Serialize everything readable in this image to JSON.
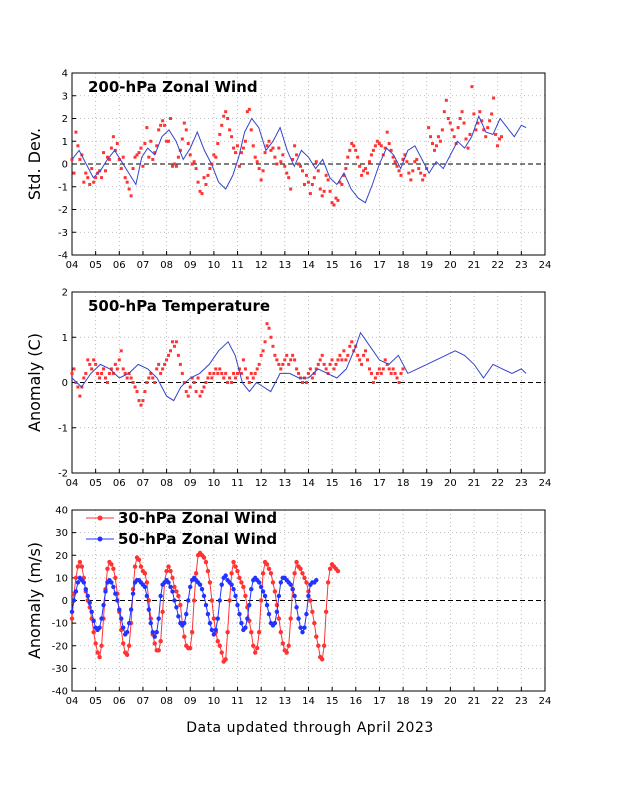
{
  "footer": "Data updated through April 2023",
  "colors": {
    "red": "#ff3333",
    "blue": "#2233ff",
    "line_blue": "#3344cc",
    "grid": "#aaaaaa"
  },
  "chart_data": [
    {
      "type": "scatter",
      "title": "200-hPa Zonal Wind",
      "ylabel": "Std. Dev.",
      "xlabel": "",
      "xlim": [
        2004,
        2024
      ],
      "ylim": [
        -4,
        4
      ],
      "x_tick_labels": [
        "04",
        "05",
        "06",
        "07",
        "08",
        "09",
        "10",
        "11",
        "12",
        "13",
        "14",
        "15",
        "16",
        "17",
        "18",
        "19",
        "20",
        "21",
        "22",
        "23",
        "24"
      ],
      "y_tick_labels": [
        "4",
        "3",
        "2",
        "1",
        "0",
        "-1",
        "-2",
        "-3",
        "-4"
      ],
      "zero_line": true,
      "grid": true,
      "series": [
        {
          "style": "points+smoothed-line",
          "x_start": 2004.0,
          "dx": 0.0833,
          "values": [
            0.2,
            -0.4,
            1.4,
            0.8,
            0.2,
            0.4,
            -0.8,
            -0.4,
            -0.6,
            -0.9,
            -0.2,
            -0.8,
            -0.6,
            -0.4,
            -0.3,
            -0.6,
            0.5,
            -0.3,
            0.3,
            0.2,
            0.7,
            1.2,
            0.6,
            0.9,
            0.2,
            -0.2,
            0.3,
            -0.6,
            -0.8,
            -1.1,
            -1.4,
            -0.2,
            0.3,
            0.4,
            0.5,
            0.7,
            -0.1,
            0.9,
            1.6,
            0.3,
            1.0,
            0.2,
            0.5,
            0.8,
            1.5,
            1.7,
            1.9,
            1.7,
            1.0,
            1.0,
            2.0,
            -0.1,
            0.0,
            -0.1,
            0.3,
            0.6,
            1.1,
            1.8,
            1.5,
            0.9,
            0.4,
            0.0,
            0.1,
            -0.2,
            -0.8,
            -1.2,
            -1.3,
            -0.6,
            -0.9,
            -0.5,
            -0.2,
            0.0,
            0.4,
            0.3,
            0.9,
            1.3,
            1.7,
            2.1,
            2.3,
            2.0,
            1.5,
            1.2,
            0.7,
            0.5,
            0.8,
            -0.1,
            0.5,
            0.7,
            1.0,
            2.3,
            2.4,
            1.5,
            0.8,
            0.3,
            0.1,
            -0.2,
            -0.7,
            -0.3,
            0.5,
            0.8,
            1.0,
            0.6,
            0.7,
            0.3,
            0.0,
            0.7,
            0.1,
            0.4,
            -0.1,
            -0.4,
            -0.6,
            -1.1,
            0.2,
            0.8,
            0.4,
            0.0,
            -0.1,
            -0.3,
            -0.9,
            -0.5,
            -0.8,
            -1.3,
            -0.9,
            -0.6,
            0.1,
            -0.3,
            -1.1,
            -1.4,
            -1.2,
            -0.5,
            -0.7,
            -1.2,
            -1.7,
            -1.8,
            -1.5,
            -1.6,
            -0.8,
            -0.9,
            -0.5,
            -0.2,
            0.3,
            0.6,
            0.9,
            0.8,
            0.6,
            0.3,
            -0.1,
            -0.5,
            -0.3,
            -0.2,
            -0.4,
            0.1,
            0.4,
            0.6,
            0.8,
            1.0,
            0.9,
            0.8,
            0.4,
            0.7,
            1.4,
            0.9,
            0.6,
            0.3,
            0.1,
            -0.1,
            -0.3,
            -0.5,
            0.2,
            0.4,
            0.1,
            -0.4,
            -0.7,
            -0.3,
            0.1,
            0.2,
            -0.2,
            -0.4,
            -0.7,
            -0.5,
            -0.2,
            1.6,
            1.2,
            0.9,
            0.6,
            0.8,
            1.2,
            1.0,
            1.5,
            2.3,
            2.8,
            2.0,
            1.8,
            1.5,
            1.2,
            0.9,
            1.6,
            2.0,
            2.3,
            1.8,
            1.1,
            0.7,
            1.3,
            3.4,
            2.2,
            1.5,
            1.8,
            2.3,
            1.9,
            1.5,
            1.2,
            1.6,
            1.9,
            2.2,
            2.9,
            1.3,
            0.8,
            1.1,
            1.2
          ]
        },
        {
          "style": "line",
          "x": [
            2004.0,
            2004.3,
            2004.6,
            2004.9,
            2005.2,
            2005.5,
            2005.8,
            2006.1,
            2006.4,
            2006.7,
            2006.95,
            2007.2,
            2007.5,
            2007.8,
            2008.1,
            2008.4,
            2008.7,
            2009.0,
            2009.3,
            2009.6,
            2009.9,
            2010.2,
            2010.5,
            2010.8,
            2011.05,
            2011.3,
            2011.6,
            2011.9,
            2012.2,
            2012.5,
            2012.8,
            2013.1,
            2013.4,
            2013.7,
            2014.0,
            2014.3,
            2014.6,
            2014.9,
            2015.2,
            2015.5,
            2015.8,
            2016.1,
            2016.4,
            2016.7,
            2017.0,
            2017.3,
            2017.6,
            2017.9,
            2018.2,
            2018.5,
            2018.8,
            2019.1,
            2019.4,
            2019.7,
            2020.0,
            2020.3,
            2020.6,
            2020.9,
            2021.2,
            2021.5,
            2021.8,
            2022.1,
            2022.4,
            2022.7,
            2023.0,
            2023.2
          ],
          "y": [
            0.2,
            0.6,
            0.0,
            -0.6,
            -0.3,
            0.2,
            0.6,
            0.1,
            -0.4,
            -0.9,
            0.3,
            0.7,
            0.4,
            1.2,
            1.5,
            1.0,
            0.2,
            0.7,
            1.4,
            0.6,
            0.0,
            -0.8,
            -1.1,
            -0.5,
            0.3,
            1.4,
            2.0,
            1.6,
            0.6,
            1.0,
            1.6,
            0.6,
            -0.1,
            0.6,
            0.3,
            -0.2,
            0.2,
            -0.6,
            -0.9,
            -0.4,
            -1.1,
            -1.5,
            -1.7,
            -0.9,
            0.0,
            0.7,
            0.4,
            -0.2,
            0.6,
            0.8,
            0.2,
            -0.4,
            0.1,
            -0.2,
            0.4,
            1.0,
            0.7,
            1.2,
            2.1,
            1.4,
            1.3,
            2.0,
            1.6,
            1.2,
            1.7,
            1.6
          ]
        }
      ]
    },
    {
      "type": "scatter",
      "title": "500-hPa Temperature",
      "ylabel": "Anomaly (C)",
      "xlabel": "",
      "xlim": [
        2004,
        2024
      ],
      "ylim": [
        -2,
        2
      ],
      "x_tick_labels": [
        "04",
        "05",
        "06",
        "07",
        "08",
        "09",
        "10",
        "11",
        "12",
        "13",
        "14",
        "15",
        "16",
        "17",
        "18",
        "19",
        "20",
        "21",
        "22",
        "23",
        "24"
      ],
      "y_tick_labels": [
        "2",
        "1",
        "0",
        "-1",
        "-2"
      ],
      "zero_line": true,
      "grid": true,
      "series": [
        {
          "style": "points+smoothed-line",
          "x_start": 2004.0,
          "dx": 0.0833,
          "values": [
            0.2,
            0.3,
            0.0,
            -0.1,
            -0.3,
            -0.1,
            0.1,
            0.2,
            0.5,
            0.4,
            0.3,
            0.5,
            0.4,
            0.2,
            0.1,
            0.2,
            0.3,
            0.1,
            0.0,
            0.2,
            0.3,
            0.2,
            0.4,
            0.3,
            0.5,
            0.7,
            0.3,
            0.2,
            0.1,
            0.2,
            0.1,
            0.0,
            -0.1,
            -0.2,
            -0.4,
            -0.5,
            -0.4,
            -0.2,
            0.0,
            0.1,
            0.2,
            0.1,
            0.0,
            0.3,
            0.4,
            0.2,
            0.3,
            0.4,
            0.5,
            0.6,
            0.7,
            0.9,
            0.8,
            0.9,
            0.6,
            0.4,
            0.2,
            0.0,
            -0.2,
            -0.3,
            -0.1,
            0.1,
            0.0,
            -0.2,
            0.1,
            -0.3,
            -0.2,
            -0.1,
            0.0,
            0.1,
            0.2,
            0.1,
            0.2,
            0.3,
            0.2,
            0.3,
            0.2,
            0.1,
            0.2,
            0.0,
            0.1,
            0.0,
            0.2,
            0.1,
            0.2,
            0.3,
            0.2,
            0.5,
            0.3,
            0.1,
            0.0,
            0.2,
            0.1,
            0.2,
            0.3,
            0.4,
            0.6,
            0.7,
            0.9,
            1.3,
            1.2,
            1.0,
            0.8,
            0.6,
            0.5,
            0.4,
            0.3,
            0.4,
            0.5,
            0.6,
            0.4,
            0.5,
            0.6,
            0.5,
            0.3,
            0.2,
            0.1,
            0.0,
            0.1,
            0.0,
            0.2,
            0.3,
            0.1,
            0.2,
            0.3,
            0.4,
            0.5,
            0.6,
            0.4,
            0.3,
            0.2,
            0.4,
            0.5,
            0.3,
            0.4,
            0.5,
            0.6,
            0.5,
            0.7,
            0.5,
            0.6,
            0.8,
            0.9,
            0.7,
            0.8,
            0.6,
            0.5,
            0.4,
            0.6,
            0.7,
            0.5,
            0.3,
            0.2,
            0.0,
            0.1,
            0.2,
            0.3,
            0.2,
            0.3,
            0.5,
            0.4,
            0.3,
            0.2,
            0.3,
            0.2,
            0.1,
            0.0,
            0.2,
            0.3
          ]
        },
        {
          "style": "line",
          "x": [
            2004.0,
            2004.4,
            2004.8,
            2005.2,
            2005.6,
            2006.0,
            2006.4,
            2006.8,
            2007.2,
            2007.6,
            2008.0,
            2008.3,
            2008.6,
            2009.0,
            2009.4,
            2009.8,
            2010.2,
            2010.6,
            2010.9,
            2011.2,
            2011.5,
            2011.8,
            2012.1,
            2012.4,
            2012.8,
            2013.2,
            2013.6,
            2014.0,
            2014.4,
            2014.8,
            2015.2,
            2015.6,
            2016.0,
            2016.2,
            2016.6,
            2017.0,
            2017.4,
            2017.8,
            2018.2,
            2018.6,
            2019.0,
            2019.4,
            2019.8,
            2020.2,
            2020.6,
            2021.0,
            2021.4,
            2021.8,
            2022.2,
            2022.6,
            2023.0,
            2023.2
          ],
          "y": [
            0.1,
            -0.1,
            0.2,
            0.4,
            0.3,
            0.1,
            0.2,
            0.4,
            0.3,
            0.1,
            -0.3,
            -0.4,
            -0.1,
            0.1,
            0.2,
            0.4,
            0.7,
            0.9,
            0.6,
            0.0,
            -0.2,
            0.0,
            -0.1,
            -0.2,
            0.2,
            0.2,
            0.1,
            0.1,
            0.3,
            0.2,
            0.1,
            0.3,
            0.8,
            1.1,
            0.8,
            0.5,
            0.4,
            0.6,
            0.2,
            0.3,
            0.4,
            0.5,
            0.6,
            0.7,
            0.6,
            0.4,
            0.1,
            0.4,
            0.3,
            0.2,
            0.3,
            0.2
          ]
        }
      ]
    },
    {
      "type": "line",
      "title": "",
      "ylabel": "Anomaly (m/s)",
      "xlabel": "",
      "xlim": [
        2004,
        2024
      ],
      "ylim": [
        -40,
        40
      ],
      "x_tick_labels": [
        "04",
        "05",
        "06",
        "07",
        "08",
        "09",
        "10",
        "11",
        "12",
        "13",
        "14",
        "15",
        "16",
        "17",
        "18",
        "19",
        "20",
        "21",
        "22",
        "23",
        "24"
      ],
      "y_tick_labels": [
        "40",
        "30",
        "20",
        "10",
        "0",
        "-10",
        "-20",
        "-30",
        "-40"
      ],
      "zero_line": true,
      "grid": true,
      "legend_position": "top-left",
      "series": [
        {
          "name": "30-hPa Zonal Wind",
          "color": "#ff3333",
          "x_start": 2004.0,
          "dx": 0.0833,
          "values": [
            -8,
            3,
            10,
            15,
            17,
            15,
            10,
            4,
            0,
            -3,
            -8,
            -14,
            -19,
            -23,
            -25,
            -20,
            -8,
            5,
            14,
            17,
            16,
            14,
            10,
            3,
            -5,
            -13,
            -19,
            -23,
            -24,
            -20,
            -10,
            5,
            15,
            19,
            18,
            15,
            13,
            12,
            8,
            0,
            -8,
            -15,
            -19,
            -22,
            -22,
            -18,
            -5,
            8,
            13,
            15,
            13,
            10,
            6,
            4,
            2,
            -2,
            -10,
            -16,
            -20,
            -21,
            -21,
            -14,
            0,
            12,
            20,
            21,
            20,
            19,
            17,
            13,
            8,
            0,
            -8,
            -14,
            -18,
            -20,
            -23,
            -27,
            -26,
            -14,
            0,
            12,
            17,
            15,
            13,
            10,
            8,
            6,
            2,
            -3,
            -9,
            -14,
            -20,
            -23,
            -21,
            -14,
            0,
            12,
            17,
            16,
            14,
            12,
            8,
            4,
            -2,
            -8,
            -14,
            -19,
            -22,
            -23,
            -20,
            -8,
            5,
            12,
            17,
            15,
            14,
            12,
            10,
            8,
            4,
            0,
            -5,
            -10,
            -16,
            -20,
            -25,
            -26,
            -20,
            -5,
            8,
            14,
            16,
            15,
            14,
            13
          ]
        },
        {
          "name": "50-hPa Zonal Wind",
          "color": "#2233ff",
          "x_start": 2004.0,
          "dx": 0.0833,
          "values": [
            -5,
            0,
            4,
            8,
            10,
            9,
            8,
            5,
            2,
            -1,
            -5,
            -9,
            -12,
            -13,
            -12,
            -8,
            -2,
            4,
            8,
            9,
            8,
            6,
            3,
            0,
            -4,
            -8,
            -12,
            -15,
            -14,
            -10,
            -4,
            3,
            8,
            9,
            9,
            8,
            7,
            6,
            2,
            -4,
            -10,
            -14,
            -16,
            -14,
            -8,
            2,
            7,
            8,
            9,
            8,
            6,
            4,
            0,
            -3,
            -7,
            -10,
            -11,
            -10,
            -6,
            0,
            6,
            9,
            10,
            9,
            8,
            7,
            5,
            2,
            -2,
            -6,
            -10,
            -13,
            -15,
            -13,
            -8,
            0,
            7,
            10,
            11,
            9,
            8,
            7,
            5,
            2,
            -2,
            -6,
            -10,
            -13,
            -12,
            -8,
            -2,
            5,
            9,
            10,
            9,
            8,
            6,
            4,
            2,
            -2,
            -6,
            -10,
            -11,
            -10,
            -5,
            2,
            8,
            10,
            10,
            9,
            8,
            7,
            5,
            2,
            -3,
            -8,
            -12,
            -14,
            -12,
            -6,
            2,
            7,
            8,
            8,
            9
          ]
        }
      ]
    }
  ]
}
